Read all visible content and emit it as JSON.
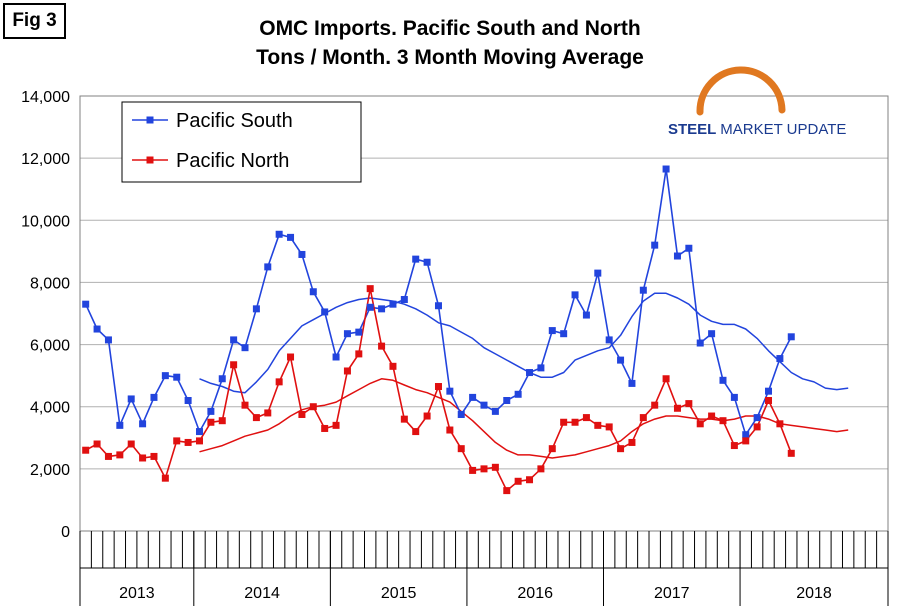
{
  "figure_label": "Fig 3",
  "chart_data": {
    "type": "line",
    "title": "OMC Imports. Pacific South and North",
    "subtitle": "Tons / Month. 3 Month Moving Average",
    "xlabel": "",
    "ylabel": "",
    "ylim": [
      0,
      14000
    ],
    "yticks": [
      0,
      2000,
      4000,
      6000,
      8000,
      10000,
      12000,
      14000
    ],
    "ytick_labels": [
      "0",
      "2,000",
      "4,000",
      "6,000",
      "8,000",
      "10,000",
      "12,000",
      "14,000"
    ],
    "months_total": 71,
    "years": [
      {
        "label": "2013",
        "start": 0,
        "count": 10
      },
      {
        "label": "2014",
        "start": 10,
        "count": 12
      },
      {
        "label": "2015",
        "start": 22,
        "count": 12
      },
      {
        "label": "2016",
        "start": 34,
        "count": 12
      },
      {
        "label": "2017",
        "start": 46,
        "count": 12
      },
      {
        "label": "2018",
        "start": 58,
        "count": 13
      }
    ],
    "legend": [
      "Pacific South",
      "Pacific North"
    ],
    "logo": {
      "brand": "STEEL",
      "rest": "MARKET UPDATE"
    },
    "colors": {
      "south": "#2244dd",
      "north": "#e01010",
      "grid": "#b0b0b0"
    },
    "series": [
      {
        "name": "Pacific South",
        "values": [
          7300,
          6500,
          6150,
          3400,
          4250,
          3450,
          4300,
          5000,
          4950,
          4200,
          3200,
          3850,
          4900,
          6150,
          5900,
          7150,
          8500,
          9550,
          9450,
          8900,
          7700,
          7050,
          5600,
          6350,
          6400,
          7200,
          7150,
          7300,
          7450,
          8750,
          8650,
          7250,
          4500,
          3750,
          4300,
          4050,
          3850,
          4200,
          4400,
          5100,
          5250,
          6450,
          6350,
          7600,
          6950,
          8300,
          6150,
          5500,
          4750,
          7750,
          9200,
          11650,
          8850,
          9100,
          6050,
          6350,
          4850,
          4300,
          3100,
          3650,
          4500,
          5550,
          6250
        ]
      },
      {
        "name": "Pacific North",
        "values": [
          2600,
          2800,
          2400,
          2450,
          2800,
          2350,
          2400,
          1700,
          2900,
          2850,
          2900,
          3500,
          3550,
          5350,
          4050,
          3650,
          3800,
          4800,
          5600,
          3750,
          4000,
          3300,
          3400,
          5150,
          5700,
          7800,
          5950,
          5300,
          3600,
          3200,
          3700,
          4650,
          3250,
          2650,
          1950,
          2000,
          2050,
          1300,
          1600,
          1650,
          2000,
          2650,
          3500,
          3500,
          3650,
          3400,
          3350,
          2650,
          2850,
          3650,
          4050,
          4900,
          3950,
          4100,
          3450,
          3700,
          3550,
          2750,
          2900,
          3350,
          4200,
          3450,
          2500
        ]
      },
      {
        "name": "Pacific South moving average",
        "values": [
          4900,
          4750,
          4650,
          4500,
          4450,
          4800,
          5200,
          5800,
          6200,
          6600,
          6800,
          7000,
          7200,
          7350,
          7450,
          7500,
          7450,
          7400,
          7300,
          7150,
          6950,
          6700,
          6600,
          6400,
          6200,
          5900,
          5700,
          5500,
          5300,
          5100,
          4950,
          4950,
          5100,
          5500,
          5650,
          5800,
          5900,
          6300,
          6900,
          7400,
          7650,
          7650,
          7500,
          7300,
          6950,
          6750,
          6650,
          6650,
          6500,
          6200,
          5800,
          5450,
          5100,
          4900,
          4800,
          4600,
          4550,
          4600
        ]
      },
      {
        "name": "Pacific North moving average",
        "values": [
          2550,
          2650,
          2750,
          2900,
          3050,
          3150,
          3250,
          3450,
          3700,
          3900,
          4000,
          4050,
          4150,
          4350,
          4550,
          4750,
          4900,
          4850,
          4700,
          4550,
          4450,
          4300,
          4150,
          3850,
          3550,
          3200,
          2850,
          2600,
          2450,
          2450,
          2400,
          2350,
          2400,
          2450,
          2550,
          2650,
          2750,
          2900,
          3200,
          3450,
          3600,
          3700,
          3700,
          3650,
          3600,
          3600,
          3550,
          3600,
          3700,
          3700,
          3600,
          3450,
          3400,
          3350,
          3300,
          3250,
          3200,
          3250
        ]
      }
    ]
  }
}
